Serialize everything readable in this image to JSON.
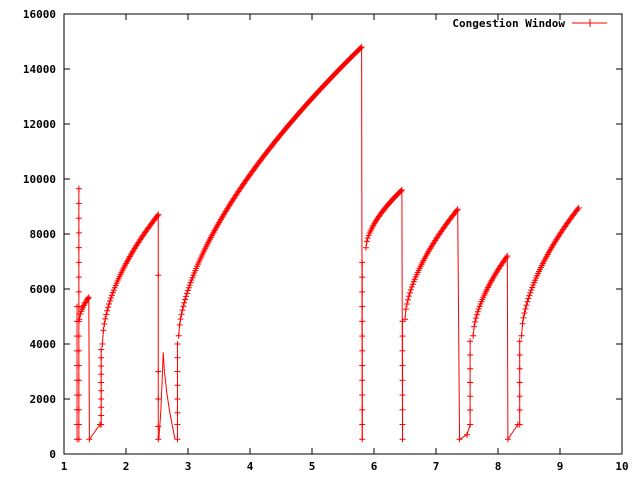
{
  "chart_data": {
    "type": "line",
    "title": "",
    "xlabel": "",
    "ylabel": "",
    "xlim": [
      1,
      10
    ],
    "ylim": [
      0,
      16000
    ],
    "xticks": [
      1,
      2,
      3,
      4,
      5,
      6,
      7,
      8,
      9,
      10
    ],
    "yticks": [
      0,
      2000,
      4000,
      6000,
      8000,
      10000,
      12000,
      14000,
      16000
    ],
    "grid": false,
    "legend": "top-right",
    "series": [
      {
        "name": "Congestion Window",
        "color": "#ff0000",
        "marker": "plus",
        "segments": [
          {
            "kind": "steps",
            "x": 1.21,
            "values": [
              536,
              1072,
              1608,
              2144,
              2680,
              3216,
              3752,
              4288,
              4824,
              5360
            ]
          },
          {
            "kind": "steps",
            "x": 1.24,
            "values": [
              536,
              1072,
              1608,
              2144,
              2680,
              3216,
              3752,
              4288,
              4824,
              5360,
              5896,
              6432,
              6968,
              7504,
              8040,
              8576,
              9112,
              9648
            ]
          },
          {
            "kind": "curve",
            "x0": 1.25,
            "x1": 1.4,
            "y0": 4900,
            "y1": 5700,
            "n": 12,
            "shape": 0.6
          },
          {
            "kind": "line",
            "points": [
              [
                1.4,
                5700
              ],
              [
                1.41,
                536
              ]
            ]
          },
          {
            "kind": "points",
            "points": [
              [
                1.41,
                536
              ],
              [
                1.58,
                1072
              ]
            ]
          },
          {
            "kind": "steps",
            "x": 1.6,
            "values": [
              1072,
              1400,
              1700,
              2000,
              2300,
              2600,
              2900,
              3200,
              3500,
              3800
            ]
          },
          {
            "kind": "curve",
            "x0": 1.62,
            "x1": 2.52,
            "y0": 4000,
            "y1": 8700,
            "n": 60,
            "shape": 0.55
          },
          {
            "kind": "steps",
            "x": 2.52,
            "values": [
              8700,
              6500,
              3000,
              2000,
              1000,
              536
            ]
          },
          {
            "kind": "line",
            "points": [
              [
                2.53,
                536
              ],
              [
                2.56,
                1500
              ],
              [
                2.58,
                2500
              ],
              [
                2.6,
                3700
              ],
              [
                2.62,
                3000
              ],
              [
                2.66,
                2200
              ],
              [
                2.7,
                1600
              ],
              [
                2.75,
                1000
              ],
              [
                2.79,
                536
              ]
            ]
          },
          {
            "kind": "steps",
            "x": 2.83,
            "values": [
              536,
              1072,
              1500,
              2000,
              2500,
              3000,
              3500,
              4000
            ]
          },
          {
            "kind": "curve",
            "x0": 2.85,
            "x1": 5.8,
            "y0": 4300,
            "y1": 14800,
            "n": 200,
            "shape": 0.62
          },
          {
            "kind": "line",
            "points": [
              [
                5.8,
                14800
              ],
              [
                5.81,
                536
              ]
            ]
          },
          {
            "kind": "steps",
            "x": 5.81,
            "values": [
              536,
              1072,
              1608,
              2144,
              2680,
              3216,
              3752,
              4288,
              4824,
              5360,
              5896,
              6432,
              6968
            ]
          },
          {
            "kind": "curve",
            "x0": 5.87,
            "x1": 6.45,
            "y0": 7500,
            "y1": 9600,
            "n": 40,
            "shape": 0.6
          },
          {
            "kind": "line",
            "points": [
              [
                6.45,
                9600
              ],
              [
                6.46,
                536
              ]
            ]
          },
          {
            "kind": "steps",
            "x": 6.46,
            "values": [
              536,
              1072,
              1608,
              2144,
              2680,
              3216,
              3752,
              4288,
              4824
            ]
          },
          {
            "kind": "curve",
            "x0": 6.5,
            "x1": 7.35,
            "y0": 4900,
            "y1": 8900,
            "n": 55,
            "shape": 0.6
          },
          {
            "kind": "line",
            "points": [
              [
                7.35,
                8900
              ],
              [
                7.38,
                536
              ]
            ]
          },
          {
            "kind": "points",
            "points": [
              [
                7.38,
                536
              ],
              [
                7.5,
                700
              ],
              [
                7.55,
                1072
              ]
            ]
          },
          {
            "kind": "steps",
            "x": 7.55,
            "values": [
              1072,
              1600,
              2100,
              2600,
              3100,
              3600,
              4100
            ]
          },
          {
            "kind": "curve",
            "x0": 7.6,
            "x1": 8.15,
            "y0": 4300,
            "y1": 7200,
            "n": 38,
            "shape": 0.6
          },
          {
            "kind": "line",
            "points": [
              [
                8.15,
                7200
              ],
              [
                8.16,
                536
              ]
            ]
          },
          {
            "kind": "points",
            "points": [
              [
                8.16,
                536
              ],
              [
                8.32,
                1072
              ]
            ]
          },
          {
            "kind": "steps",
            "x": 8.35,
            "values": [
              1072,
              1600,
              2100,
              2600,
              3100,
              3600,
              4100
            ]
          },
          {
            "kind": "curve",
            "x0": 8.38,
            "x1": 9.3,
            "y0": 4300,
            "y1": 8950,
            "n": 60,
            "shape": 0.58
          }
        ]
      }
    ]
  }
}
